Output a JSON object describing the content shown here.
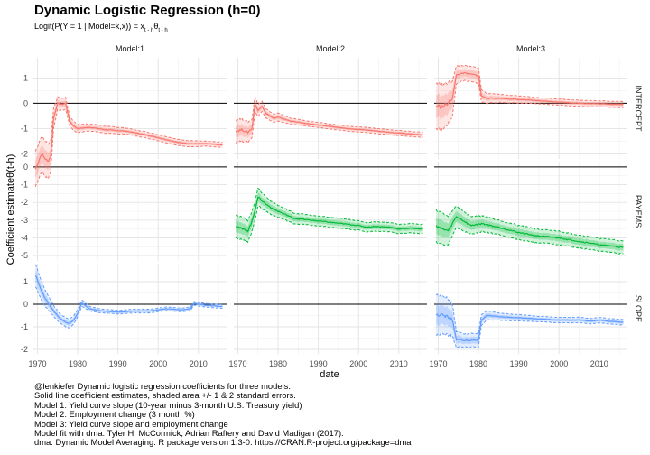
{
  "title": "Dynamic Logistic Regression (h=0)",
  "subtitle": {
    "main": "Logit(P(Y = 1 | Model=k,x)) = x",
    "sub1": "t - h",
    "mid": "θ",
    "sub2": "t - h"
  },
  "caption": [
    "@lenkiefer Dynamic logistic regression coefficients for three models.",
    "Solid line coefficient estimates, shaded area +/- 1 & 2 standard errors.",
    "Model 1: Yield curve slope (10-year minus 3-month U.S. Treasury yield)",
    "Model 2: Employment change (3 month %)",
    "Model 3: Yield curve slope and employment change",
    "Model fit with dma:  Tyler H. McCormick, Adrian Raftery and David Madigan (2017).",
    "dma: Dynamic Model Averaging. R package version 1.3-0. https://CRAN.R-project.org/package=dma"
  ],
  "chart_data": {
    "type": "line",
    "title": "Dynamic Logistic Regression (h=0)",
    "xlabel": "date",
    "ylabel": "Coefficient estimateθ(t-h)",
    "xlim": [
      1969,
      2017
    ],
    "x_ticks": [
      1970,
      1980,
      1990,
      2000,
      2010
    ],
    "columns": [
      "Model:1",
      "Model:2",
      "Model:3"
    ],
    "rows": [
      {
        "name": "INTERCEPT",
        "ylim": [
          -2.2,
          1.8
        ],
        "ticks": [
          -2,
          -1,
          0,
          1
        ],
        "tick_labels": [
          "-2",
          "-1",
          "0",
          "1"
        ],
        "ref": 0
      },
      {
        "name": "PAYEMS",
        "ylim": [
          -5.3,
          0.3
        ],
        "ticks": [
          -5,
          -4,
          -3,
          -2,
          -1,
          0
        ],
        "tick_labels": [
          "-5",
          "-4",
          "-3",
          "-2",
          "-1",
          "0"
        ],
        "ref": 0
      },
      {
        "name": "SLOPE",
        "ylim": [
          -2.2,
          1.8
        ],
        "ticks": [
          -2,
          -1,
          0,
          1
        ],
        "tick_labels": [
          "-2",
          "-1",
          "0",
          "1"
        ],
        "ref": 0
      }
    ],
    "panels": [
      {
        "row": "INTERCEPT",
        "col": "Model:1",
        "color": "#f8766d",
        "x": [
          1969.5,
          1971,
          1972.5,
          1973.3,
          1974,
          1975,
          1976,
          1977,
          1978,
          1979,
          1980,
          1983,
          1987,
          1992,
          1997,
          2001,
          2005,
          2008,
          2012,
          2016
        ],
        "est": [
          -2.6,
          -2.0,
          -2.3,
          -2.1,
          -0.6,
          0.0,
          -0.05,
          0.0,
          -0.7,
          -0.9,
          -1.0,
          -0.95,
          -1.05,
          -1.1,
          -1.25,
          -1.4,
          -1.55,
          -1.6,
          -1.6,
          -1.65
        ],
        "se": [
          0.35,
          0.35,
          0.35,
          0.3,
          0.2,
          0.12,
          0.12,
          0.12,
          0.09,
          0.09,
          0.08,
          0.07,
          0.07,
          0.06,
          0.06,
          0.06,
          0.06,
          0.06,
          0.05,
          0.05
        ]
      },
      {
        "row": "INTERCEPT",
        "col": "Model:2",
        "color": "#f8766d",
        "x": [
          1969.5,
          1971,
          1972.5,
          1973.5,
          1974.3,
          1975,
          1976,
          1977,
          1979,
          1980,
          1983,
          1987,
          1992,
          1997,
          2001,
          2005,
          2008,
          2012,
          2016
        ],
        "est": [
          -1.1,
          -1.05,
          -1.15,
          -1.0,
          0.0,
          -0.3,
          -0.1,
          -0.4,
          -0.6,
          -0.55,
          -0.7,
          -0.8,
          -0.9,
          -1.0,
          -1.05,
          -1.1,
          -1.15,
          -1.2,
          -1.25
        ],
        "se": [
          0.22,
          0.22,
          0.2,
          0.18,
          0.16,
          0.12,
          0.1,
          0.09,
          0.08,
          0.08,
          0.06,
          0.05,
          0.05,
          0.05,
          0.05,
          0.05,
          0.05,
          0.05,
          0.05
        ]
      },
      {
        "row": "INTERCEPT",
        "col": "Model:3",
        "color": "#f8766d",
        "x": [
          1969.5,
          1971,
          1972.5,
          1973.5,
          1974.5,
          1976,
          1978,
          1980,
          1980.7,
          1982,
          1985,
          1990,
          1995,
          2000,
          2005,
          2010,
          2016
        ],
        "est": [
          -0.1,
          -0.15,
          0.0,
          0.2,
          1.1,
          1.2,
          1.15,
          1.1,
          0.3,
          0.2,
          0.2,
          0.15,
          0.1,
          0.05,
          0.0,
          -0.02,
          -0.05
        ],
        "se": [
          0.45,
          0.45,
          0.4,
          0.35,
          0.18,
          0.15,
          0.15,
          0.15,
          0.12,
          0.1,
          0.08,
          0.07,
          0.06,
          0.06,
          0.06,
          0.06,
          0.06
        ]
      },
      {
        "row": "PAYEMS",
        "col": "Model:2",
        "color": "#00ba38",
        "x": [
          1969.5,
          1971,
          1972.5,
          1973.5,
          1974.3,
          1975,
          1976,
          1977,
          1979,
          1981,
          1984,
          1988,
          1992,
          1996,
          2000,
          2002,
          2004,
          2008,
          2010,
          2013,
          2016
        ],
        "est": [
          -3.3,
          -3.5,
          -3.6,
          -3.1,
          -2.4,
          -1.7,
          -1.9,
          -2.1,
          -2.4,
          -2.6,
          -2.9,
          -3.0,
          -3.1,
          -3.2,
          -3.3,
          -3.4,
          -3.35,
          -3.4,
          -3.5,
          -3.45,
          -3.5
        ],
        "se": [
          0.32,
          0.32,
          0.3,
          0.28,
          0.26,
          0.25,
          0.22,
          0.2,
          0.18,
          0.16,
          0.15,
          0.14,
          0.14,
          0.14,
          0.13,
          0.13,
          0.13,
          0.13,
          0.13,
          0.13,
          0.13
        ]
      },
      {
        "row": "PAYEMS",
        "col": "Model:3",
        "color": "#00ba38",
        "x": [
          1969.5,
          1971,
          1972.5,
          1973.5,
          1974.5,
          1976,
          1978,
          1981,
          1985,
          1990,
          1995,
          2000,
          2005,
          2008,
          2010,
          2013,
          2016
        ],
        "est": [
          -3.3,
          -3.5,
          -3.6,
          -3.2,
          -2.8,
          -3.0,
          -3.3,
          -3.2,
          -3.4,
          -3.7,
          -3.9,
          -4.0,
          -4.2,
          -4.3,
          -4.4,
          -4.45,
          -4.55
        ],
        "se": [
          0.45,
          0.45,
          0.4,
          0.35,
          0.3,
          0.28,
          0.25,
          0.22,
          0.2,
          0.2,
          0.19,
          0.19,
          0.18,
          0.18,
          0.18,
          0.18,
          0.18
        ]
      },
      {
        "row": "SLOPE",
        "col": "Model:1",
        "color": "#619cff",
        "x": [
          1969.5,
          1970.5,
          1971.5,
          1972.5,
          1974,
          1975.5,
          1977,
          1978,
          1979,
          1980,
          1981,
          1983,
          1986,
          1990,
          1994,
          1998,
          2002,
          2006,
          2008,
          2009,
          2010,
          2012,
          2016
        ],
        "est": [
          1.3,
          0.8,
          0.4,
          0.1,
          -0.3,
          -0.6,
          -0.8,
          -0.85,
          -0.7,
          -0.4,
          0.05,
          -0.2,
          -0.3,
          -0.35,
          -0.3,
          -0.3,
          -0.2,
          -0.25,
          -0.2,
          0.05,
          0.0,
          -0.05,
          -0.1
        ],
        "se": [
          0.25,
          0.22,
          0.2,
          0.16,
          0.12,
          0.1,
          0.1,
          0.1,
          0.09,
          0.08,
          0.07,
          0.05,
          0.04,
          0.04,
          0.04,
          0.04,
          0.04,
          0.04,
          0.04,
          0.04,
          0.04,
          0.04,
          0.04
        ]
      },
      {
        "row": "SLOPE",
        "col": "Model:3",
        "color": "#619cff",
        "x": [
          1969.5,
          1971,
          1972.5,
          1973.5,
          1974.5,
          1976,
          1978,
          1980,
          1980.7,
          1982,
          1985,
          1990,
          1995,
          2000,
          2005,
          2008,
          2010,
          2012,
          2016
        ],
        "est": [
          -0.5,
          -0.4,
          -0.6,
          -0.7,
          -1.55,
          -1.6,
          -1.6,
          -1.6,
          -0.7,
          -0.5,
          -0.55,
          -0.6,
          -0.65,
          -0.7,
          -0.7,
          -0.75,
          -0.7,
          -0.75,
          -0.8
        ],
        "se": [
          0.45,
          0.42,
          0.4,
          0.35,
          0.18,
          0.15,
          0.15,
          0.15,
          0.12,
          0.1,
          0.08,
          0.07,
          0.06,
          0.06,
          0.06,
          0.06,
          0.06,
          0.06,
          0.06
        ]
      }
    ]
  }
}
